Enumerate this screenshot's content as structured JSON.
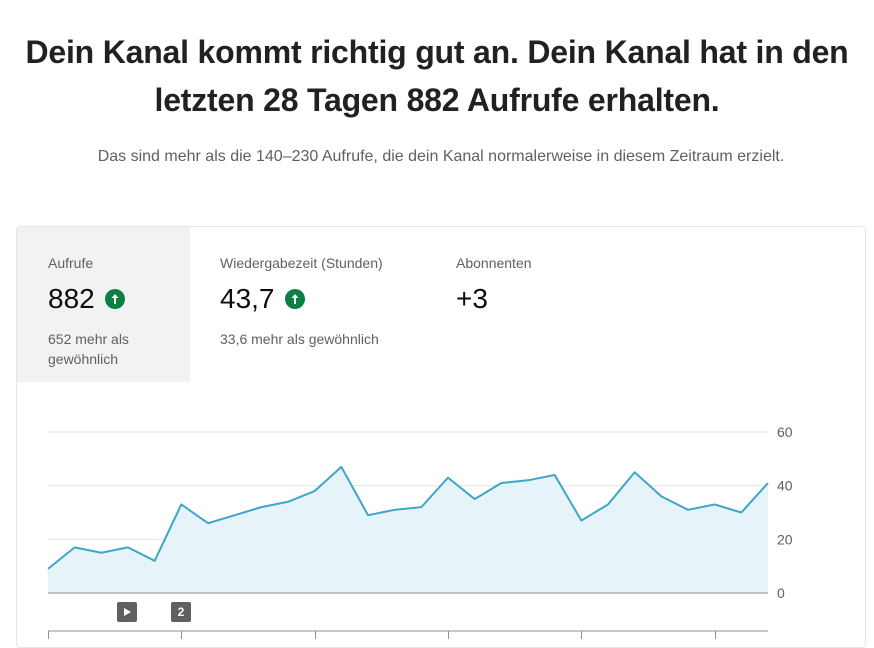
{
  "header": {
    "headline": "Dein Kanal kommt richtig gut an. Dein Kanal hat in den letzten 28 Tagen 882 Aufrufe erhalten.",
    "subline": "Das sind mehr als die 140–230 Aufrufe, die dein Kanal normalerweise in diesem Zeitraum erzielt."
  },
  "metrics": [
    {
      "label": "Aufrufe",
      "value": "882",
      "trend": "up",
      "note": "652 mehr als gewöhnlich",
      "active": true
    },
    {
      "label": "Wiedergabezeit (Stunden)",
      "value": "43,7",
      "trend": "up",
      "note": "33,6 mehr als gewöhnlich",
      "active": false
    },
    {
      "label": "Abonnenten",
      "value": "+3",
      "trend": "",
      "note": "",
      "active": false
    }
  ],
  "colors": {
    "line": "#3ea6c9",
    "fill": "#e6f3f9",
    "up": "#0b8043",
    "marker": "#606060"
  },
  "markers": [
    {
      "type": "play-icon",
      "label": ""
    },
    {
      "type": "count",
      "label": "2"
    }
  ],
  "chart_data": {
    "type": "area",
    "series": [
      {
        "values": [
          9,
          17,
          15,
          17,
          12,
          33,
          26,
          29,
          32,
          34,
          38,
          47,
          29,
          31,
          32,
          43,
          35,
          41,
          42,
          44,
          27,
          33,
          45,
          36,
          31,
          33,
          30,
          41
        ]
      }
    ],
    "yticks": [
      "60",
      "40",
      "20",
      "0"
    ],
    "ylim": [
      0,
      60
    ],
    "grid": true
  }
}
